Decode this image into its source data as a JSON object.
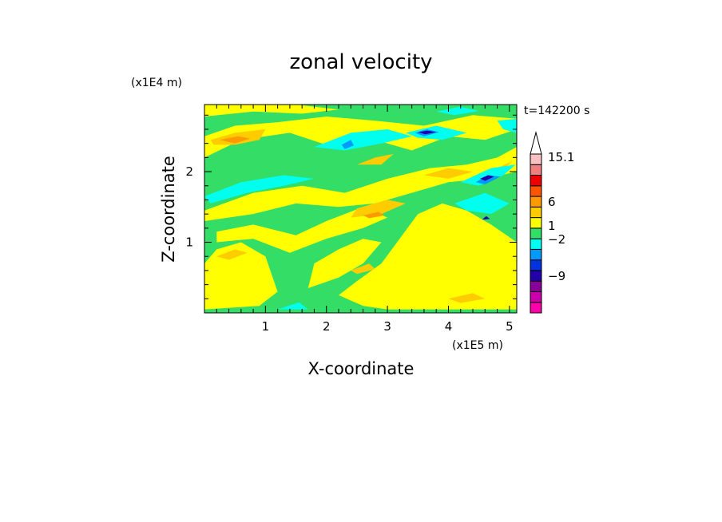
{
  "chart_data": {
    "type": "heatmap",
    "title": "zonal velocity",
    "xlabel": "X-coordinate",
    "ylabel": "Z-coordinate",
    "x_scale_label": "(x1E5 m)",
    "y_scale_label": "(x1E4 m)",
    "time_label": "t=142200 s",
    "xlim": [
      0,
      5.12
    ],
    "ylim": [
      0,
      2.95
    ],
    "x_ticks": [
      1,
      2,
      3,
      4,
      5
    ],
    "y_ticks": [
      1,
      2
    ],
    "colorbar": {
      "label_values": [
        "15.1",
        "6",
        "1",
        "−2",
        "−9"
      ],
      "levels": [
        {
          "color": "#ff00aa"
        },
        {
          "color": "#cc00aa"
        },
        {
          "color": "#880099"
        },
        {
          "color": "#2200aa"
        },
        {
          "color": "#0033dd"
        },
        {
          "color": "#0099ff"
        },
        {
          "color": "#00ffee"
        },
        {
          "color": "#33dd66"
        },
        {
          "color": "#ffff00"
        },
        {
          "color": "#ffcc00"
        },
        {
          "color": "#ff9900"
        },
        {
          "color": "#ff5500"
        },
        {
          "color": "#ee0000"
        },
        {
          "color": "#f08080"
        },
        {
          "color": "#f8c0c0"
        }
      ],
      "extend_top_color": "#ffffff"
    },
    "regions": [
      {
        "color": "#33dd66",
        "points": [
          [
            0,
            0
          ],
          [
            5.12,
            0
          ],
          [
            5.12,
            2.95
          ],
          [
            0,
            2.95
          ]
        ]
      },
      {
        "color": "#ffff00",
        "points": [
          [
            0,
            0.05
          ],
          [
            0.9,
            0.1
          ],
          [
            1.2,
            0.3
          ],
          [
            1.0,
            0.8
          ],
          [
            0.6,
            1.0
          ],
          [
            0.2,
            0.9
          ],
          [
            0,
            0.7
          ]
        ]
      },
      {
        "color": "#ffff00",
        "points": [
          [
            0.2,
            1.15
          ],
          [
            0.8,
            1.25
          ],
          [
            1.5,
            1.1
          ],
          [
            2.0,
            1.3
          ],
          [
            2.6,
            1.5
          ],
          [
            3.0,
            1.35
          ],
          [
            2.6,
            1.2
          ],
          [
            2.0,
            1.05
          ],
          [
            1.4,
            0.85
          ],
          [
            0.8,
            1.05
          ],
          [
            0.2,
            1.0
          ]
        ]
      },
      {
        "color": "#ffff00",
        "points": [
          [
            0,
            1.45
          ],
          [
            0.8,
            1.7
          ],
          [
            1.6,
            1.8
          ],
          [
            2.3,
            1.7
          ],
          [
            3.0,
            1.9
          ],
          [
            3.7,
            2.05
          ],
          [
            4.3,
            2.1
          ],
          [
            4.8,
            2.2
          ],
          [
            5.12,
            2.35
          ],
          [
            5.12,
            2.0
          ],
          [
            4.6,
            1.9
          ],
          [
            4.0,
            1.85
          ],
          [
            3.4,
            1.7
          ],
          [
            2.8,
            1.55
          ],
          [
            2.2,
            1.5
          ],
          [
            1.5,
            1.55
          ],
          [
            0.8,
            1.4
          ],
          [
            0,
            1.3
          ]
        ]
      },
      {
        "color": "#ffff00",
        "points": [
          [
            0,
            2.2
          ],
          [
            0.6,
            2.45
          ],
          [
            1.4,
            2.55
          ],
          [
            2.1,
            2.35
          ],
          [
            2.8,
            2.45
          ],
          [
            3.4,
            2.3
          ],
          [
            4.0,
            2.5
          ],
          [
            4.6,
            2.45
          ],
          [
            5.12,
            2.6
          ],
          [
            5.12,
            2.75
          ],
          [
            4.4,
            2.8
          ],
          [
            3.6,
            2.65
          ],
          [
            2.8,
            2.72
          ],
          [
            2.0,
            2.78
          ],
          [
            1.2,
            2.7
          ],
          [
            0.5,
            2.65
          ],
          [
            0,
            2.5
          ]
        ]
      },
      {
        "color": "#ffff00",
        "points": [
          [
            3.0,
            0.05
          ],
          [
            5.12,
            0.05
          ],
          [
            5.12,
            1.0
          ],
          [
            4.7,
            1.25
          ],
          [
            4.3,
            1.45
          ],
          [
            3.9,
            1.55
          ],
          [
            3.5,
            1.4
          ],
          [
            3.2,
            1.05
          ],
          [
            2.9,
            0.7
          ],
          [
            2.5,
            0.45
          ],
          [
            2.2,
            0.25
          ],
          [
            2.6,
            0.1
          ]
        ]
      },
      {
        "color": "#ffff00",
        "points": [
          [
            1.7,
            0.35
          ],
          [
            2.2,
            0.5
          ],
          [
            2.6,
            0.7
          ],
          [
            2.9,
            1.0
          ],
          [
            2.6,
            1.05
          ],
          [
            2.2,
            0.9
          ],
          [
            1.8,
            0.7
          ]
        ]
      },
      {
        "color": "#ffff00",
        "points": [
          [
            0,
            2.95
          ],
          [
            1.5,
            2.95
          ],
          [
            2.2,
            2.88
          ],
          [
            1.6,
            2.82
          ],
          [
            0.8,
            2.85
          ],
          [
            0,
            2.78
          ]
        ]
      },
      {
        "color": "#ffcc00",
        "points": [
          [
            0.1,
            2.45
          ],
          [
            0.5,
            2.55
          ],
          [
            1.0,
            2.6
          ],
          [
            0.9,
            2.45
          ],
          [
            0.5,
            2.38
          ],
          [
            0.15,
            2.38
          ]
        ]
      },
      {
        "color": "#ffcc00",
        "points": [
          [
            2.4,
            1.35
          ],
          [
            2.9,
            1.4
          ],
          [
            3.3,
            1.55
          ],
          [
            3.0,
            1.6
          ],
          [
            2.5,
            1.48
          ]
        ]
      },
      {
        "color": "#ffcc00",
        "points": [
          [
            3.6,
            1.95
          ],
          [
            4.0,
            2.05
          ],
          [
            4.4,
            2.0
          ],
          [
            4.0,
            1.9
          ]
        ]
      },
      {
        "color": "#ffcc00",
        "points": [
          [
            2.5,
            2.1
          ],
          [
            2.8,
            2.2
          ],
          [
            3.1,
            2.25
          ],
          [
            2.9,
            2.1
          ]
        ]
      },
      {
        "color": "#ffcc00",
        "points": [
          [
            0.2,
            0.8
          ],
          [
            0.5,
            0.9
          ],
          [
            0.7,
            0.85
          ],
          [
            0.4,
            0.75
          ]
        ]
      },
      {
        "color": "#ffcc00",
        "points": [
          [
            4.4,
            1.9
          ],
          [
            4.8,
            2.05
          ],
          [
            5.05,
            2.15
          ],
          [
            4.8,
            1.95
          ]
        ]
      },
      {
        "color": "#ffcc00",
        "points": [
          [
            2.4,
            0.6
          ],
          [
            2.7,
            0.7
          ],
          [
            2.8,
            0.62
          ],
          [
            2.5,
            0.55
          ]
        ]
      },
      {
        "color": "#ffcc00",
        "points": [
          [
            4.0,
            0.2
          ],
          [
            4.4,
            0.28
          ],
          [
            4.6,
            0.2
          ],
          [
            4.2,
            0.14
          ]
        ]
      },
      {
        "color": "#ff9900",
        "points": [
          [
            0.25,
            2.45
          ],
          [
            0.55,
            2.5
          ],
          [
            0.75,
            2.47
          ],
          [
            0.5,
            2.4
          ]
        ]
      },
      {
        "color": "#ff9900",
        "points": [
          [
            2.6,
            1.38
          ],
          [
            2.85,
            1.43
          ],
          [
            2.95,
            1.38
          ],
          [
            2.7,
            1.34
          ]
        ]
      },
      {
        "color": "#00ffee",
        "points": [
          [
            0,
            1.65
          ],
          [
            0.6,
            1.85
          ],
          [
            1.3,
            1.95
          ],
          [
            1.8,
            1.9
          ],
          [
            1.3,
            1.8
          ],
          [
            0.7,
            1.7
          ],
          [
            0.1,
            1.55
          ]
        ]
      },
      {
        "color": "#00ffee",
        "points": [
          [
            1.8,
            2.35
          ],
          [
            2.4,
            2.55
          ],
          [
            3.0,
            2.6
          ],
          [
            3.4,
            2.5
          ],
          [
            2.9,
            2.4
          ],
          [
            2.3,
            2.3
          ]
        ]
      },
      {
        "color": "#00ffee",
        "points": [
          [
            3.3,
            2.55
          ],
          [
            3.8,
            2.65
          ],
          [
            4.3,
            2.55
          ],
          [
            3.9,
            2.45
          ],
          [
            3.5,
            2.48
          ]
        ]
      },
      {
        "color": "#00ffee",
        "points": [
          [
            4.1,
            1.55
          ],
          [
            4.6,
            1.7
          ],
          [
            5.0,
            1.55
          ],
          [
            4.7,
            1.4
          ],
          [
            4.3,
            1.45
          ]
        ]
      },
      {
        "color": "#00ffee",
        "points": [
          [
            4.2,
            1.85
          ],
          [
            4.7,
            2.05
          ],
          [
            5.1,
            2.1
          ],
          [
            4.9,
            1.95
          ],
          [
            4.5,
            1.8
          ]
        ]
      },
      {
        "color": "#00ffee",
        "points": [
          [
            4.8,
            2.72
          ],
          [
            5.12,
            2.75
          ],
          [
            5.12,
            2.55
          ],
          [
            4.9,
            2.6
          ]
        ]
      },
      {
        "color": "#00ffee",
        "points": [
          [
            1.2,
            0.05
          ],
          [
            1.55,
            0.15
          ],
          [
            1.7,
            0.05
          ]
        ]
      },
      {
        "color": "#00ffee",
        "points": [
          [
            3.8,
            2.85
          ],
          [
            4.2,
            2.92
          ],
          [
            4.5,
            2.86
          ],
          [
            4.1,
            2.8
          ]
        ]
      },
      {
        "color": "#0099ff",
        "points": [
          [
            3.45,
            2.55
          ],
          [
            3.65,
            2.6
          ],
          [
            3.85,
            2.56
          ],
          [
            3.6,
            2.5
          ]
        ]
      },
      {
        "color": "#0099ff",
        "points": [
          [
            4.45,
            1.85
          ],
          [
            4.65,
            1.95
          ],
          [
            4.85,
            1.93
          ],
          [
            4.6,
            1.82
          ]
        ]
      },
      {
        "color": "#0099ff",
        "points": [
          [
            2.25,
            2.38
          ],
          [
            2.4,
            2.45
          ],
          [
            2.45,
            2.37
          ],
          [
            2.3,
            2.32
          ]
        ]
      },
      {
        "color": "#2200aa",
        "points": [
          [
            3.5,
            2.56
          ],
          [
            3.65,
            2.58
          ],
          [
            3.8,
            2.56
          ],
          [
            3.62,
            2.53
          ]
        ]
      },
      {
        "color": "#2200aa",
        "points": [
          [
            4.52,
            1.9
          ],
          [
            4.65,
            1.95
          ],
          [
            4.75,
            1.93
          ],
          [
            4.6,
            1.87
          ]
        ]
      },
      {
        "color": "#2200aa",
        "points": [
          [
            4.55,
            1.32
          ],
          [
            4.62,
            1.37
          ],
          [
            4.68,
            1.33
          ]
        ]
      }
    ]
  }
}
